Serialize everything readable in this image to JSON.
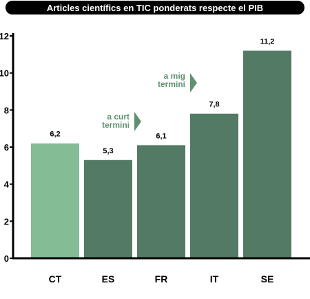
{
  "chart_data": {
    "type": "bar",
    "title": "Articles científics en TIC ponderats respecte el PIB",
    "xlabel": "",
    "ylabel": "",
    "categories": [
      "CT",
      "ES",
      "FR",
      "IT",
      "SE"
    ],
    "values": [
      6.2,
      5.3,
      6.1,
      7.8,
      11.2
    ],
    "value_labels": [
      "6,2",
      "5,3",
      "6,1",
      "7,8",
      "11,2"
    ],
    "ylim": [
      0,
      12
    ],
    "yticks": [
      0,
      2,
      4,
      6,
      8,
      10,
      12
    ],
    "grid": false,
    "legend": "none",
    "highlight_category": "CT",
    "annotations": [
      {
        "lines": [
          "a curt",
          "termini"
        ],
        "near_category": "ES"
      },
      {
        "lines": [
          "a mig",
          "termini"
        ],
        "near_category": "IT"
      }
    ]
  },
  "colors": {
    "title_bg": "#000000",
    "title_text": "#ffffff",
    "bar_highlight": "#84bc96",
    "bar_default": "#527a65",
    "annotation": "#5f9170",
    "axis": "#000000"
  }
}
